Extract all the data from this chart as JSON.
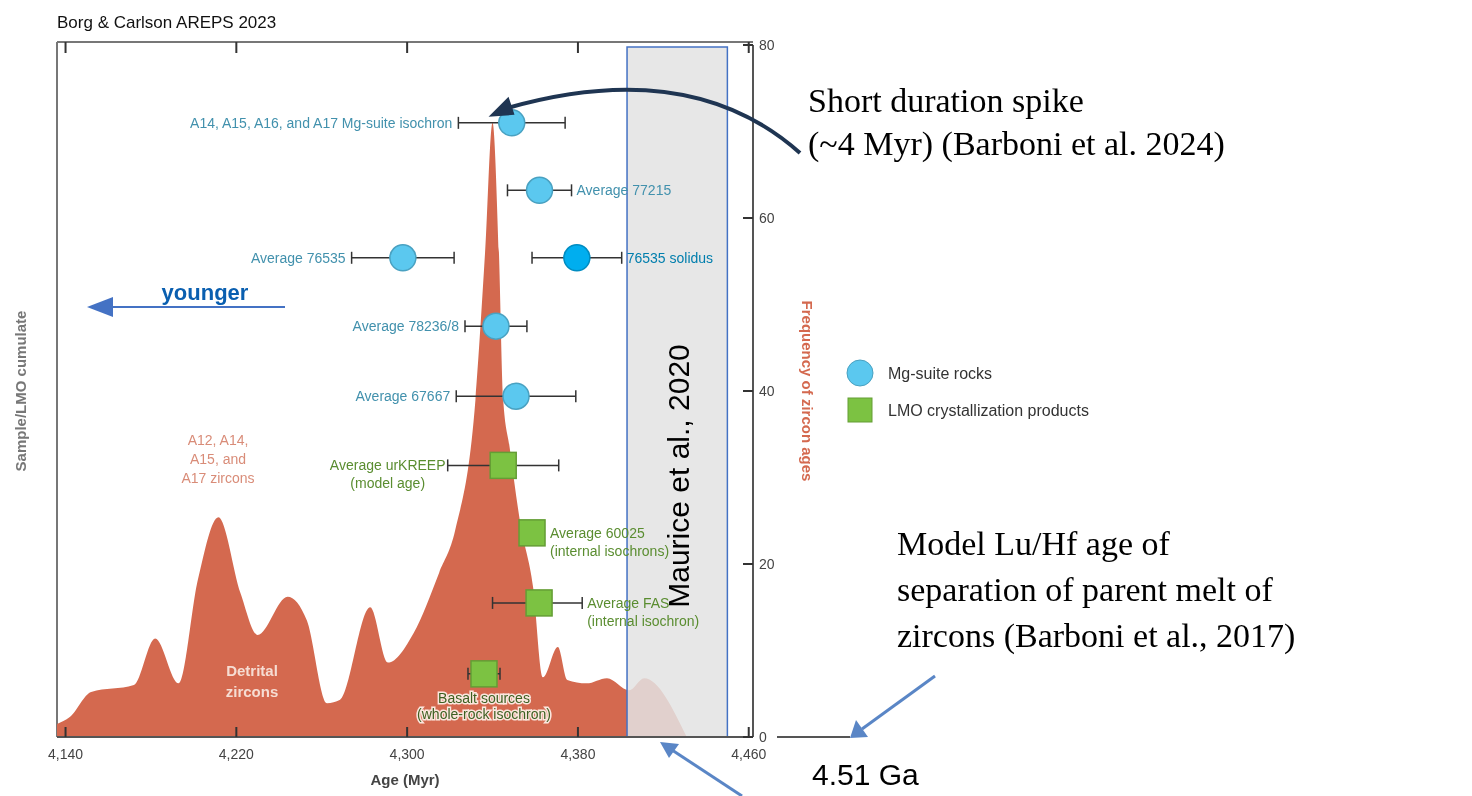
{
  "chart_data": {
    "type": "scatter",
    "title": "Borg & Carlson AREPS 2023",
    "xlabel": "Age (Myr)",
    "ylabel": "Sample/LMO cumulate",
    "y2label": "Frequency of zircon ages",
    "xlim": [
      4136,
      4462
    ],
    "xticks": [
      {
        "value": 4140,
        "label": "4,140"
      },
      {
        "value": 4220,
        "label": "4,220"
      },
      {
        "value": 4300,
        "label": "4,300"
      },
      {
        "value": 4380,
        "label": "4,380"
      },
      {
        "value": 4460,
        "label": "4,460"
      }
    ],
    "y2lim": [
      0,
      80
    ],
    "y2ticks": [
      0,
      20,
      40,
      60,
      80
    ],
    "legend": "right",
    "series": [
      {
        "type": "area",
        "axis": "y2",
        "color": "#d4694f",
        "x": [
          4136,
          4142,
          4152,
          4172,
          4182,
          4193,
          4202,
          4211.6,
          4222,
          4230,
          4244,
          4253,
          4262.5,
          4268.6,
          4282.7,
          4291,
          4303,
          4315,
          4322.5,
          4332,
          4336.5,
          4340,
          4343,
          4345,
          4348,
          4353,
          4359,
          4363.6,
          4370.6,
          4375,
          4384,
          4393.6,
          4404,
          4411,
          4431
        ],
        "values": [
          1.5,
          2.3,
          5.2,
          6,
          11.4,
          6.2,
          18.2,
          25.4,
          16.6,
          11.8,
          16.2,
          13.5,
          3.9,
          4.3,
          15,
          8.6,
          12,
          19,
          23.9,
          39,
          56,
          71,
          56,
          39,
          33.5,
          24.7,
          17.3,
          6.9,
          10.4,
          6.6,
          6.2,
          6.8,
          5.4,
          6.8,
          0
        ]
      },
      {
        "name": "Mg-suite rocks",
        "axis": "y2",
        "marker": "circle",
        "color": "#5bc8ef",
        "x": [
          4349,
          4362,
          4298,
          4341.6,
          4351
        ],
        "values": [
          71,
          63.2,
          55.4,
          47.5,
          39.4
        ],
        "xerrors": [
          25,
          15,
          24,
          14.5,
          28
        ]
      },
      {
        "axis": "y2",
        "marker": "circle",
        "color": "#00aeef",
        "x": [
          4379.5
        ],
        "values": [
          55.4
        ],
        "xerrors": [
          21
        ]
      },
      {
        "name": "LMO crystallization products",
        "axis": "y2",
        "marker": "square",
        "color": "#7cc242",
        "x": [
          4345,
          4358.5,
          4361.8,
          4336
        ],
        "values": [
          31.4,
          23.6,
          15.5,
          7.3
        ],
        "xerrors": [
          26,
          null,
          [
            4340,
            4382
          ],
          7.5
        ]
      }
    ],
    "bands": [
      {
        "axis": "x",
        "from": 4403,
        "to": 4450,
        "label": "Maurice et al., 2020",
        "color": "#e3e3e3"
      }
    ],
    "annotations": [
      "A14, A15, A16, and A17 Mg-suite isochron",
      "Average 77215",
      "Average 76535",
      "Average 78236/8",
      "Average 67667",
      "76535 solidus",
      "Average urKREEP\n(model age)",
      "Average 60025\n(internal isochrons)",
      "Average FAS\n(internal isochron)",
      "Basalt sources\n(whole-rock isochron)",
      "Short duration spike\n(~4 Myr) (Barboni et al. 2024)",
      "A12, A14,\nA15, and\nA17 zircons",
      "Detrital\nzircons",
      "younger",
      "Model Lu/Hf age of\nseparation of parent melt of\nzircons (Barboni et al., 2017)",
      "4.51 Ga"
    ]
  }
}
